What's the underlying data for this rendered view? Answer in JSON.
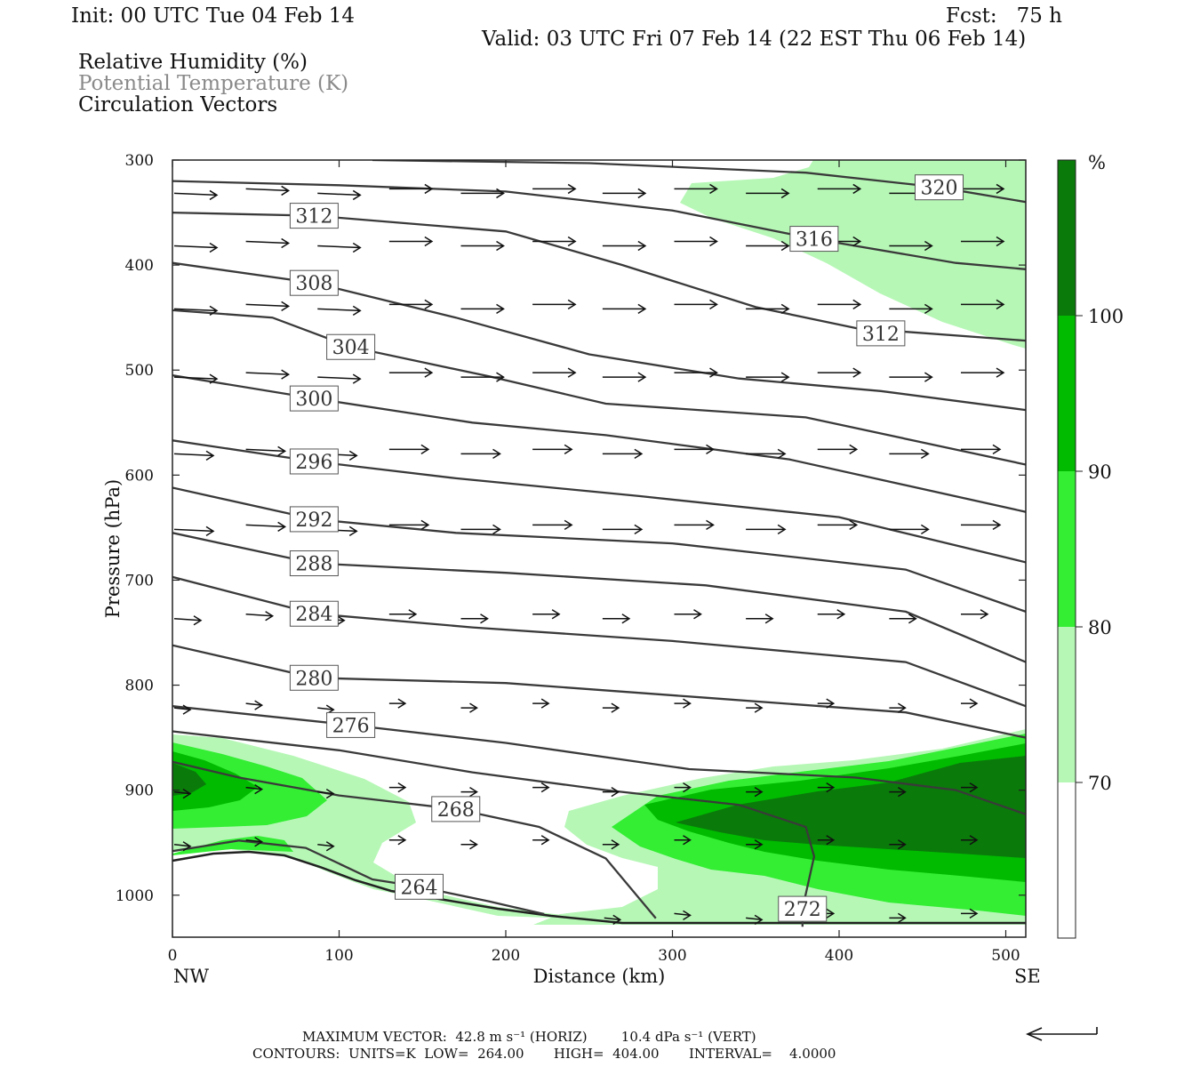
{
  "header": {
    "init": "Init: 00 UTC Tue 04 Feb 14",
    "fcst": "Fcst:   75 h",
    "valid": "Valid: 03 UTC Fri 07 Feb 14 (22 EST Thu 06 Feb 14)"
  },
  "legend": {
    "line1": "Relative Humidity (%)",
    "line2": "Potential Temperature (K)",
    "line3": "Circulation Vectors"
  },
  "footer": {
    "line1": "MAXIMUM VECTOR:  42.8 m s⁻¹ (HORIZ)        10.4 dPa s⁻¹ (VERT)",
    "line2": "CONTOURS:  UNITS=K  LOW=  264.00       HIGH=  404.00       INTERVAL=    4.0000"
  },
  "colorbar": {
    "unit": "%",
    "ticks": [
      "100",
      "90",
      "80",
      "70"
    ],
    "colors": [
      "#0a7a0a",
      "#00bb00",
      "#33ee33",
      "#b6f7b6",
      "#ffffff"
    ]
  },
  "chart_data": {
    "type": "contour",
    "xlabel": "Distance (km)",
    "ylabel": "Pressure (hPa)",
    "x_ticks": [
      "0",
      "100",
      "200",
      "300",
      "400",
      "500"
    ],
    "x_end_labels": {
      "left": "NW",
      "right": "SE"
    },
    "y_ticks": [
      "300",
      "400",
      "500",
      "600",
      "700",
      "800",
      "900",
      "1000"
    ],
    "xlim": [
      0,
      512
    ],
    "ylim": [
      1040,
      300
    ],
    "theta_contours": [
      {
        "level": 320,
        "label": "320",
        "label_at": [
          460,
          326
        ],
        "points": [
          [
            120,
            300
          ],
          [
            250,
            303
          ],
          [
            380,
            312
          ],
          [
            460,
            326
          ],
          [
            512,
            340
          ]
        ]
      },
      {
        "level": 316,
        "label": "316",
        "label_at": [
          385,
          375
        ],
        "points": [
          [
            0,
            320
          ],
          [
            100,
            324
          ],
          [
            200,
            330
          ],
          [
            300,
            348
          ],
          [
            385,
            375
          ],
          [
            470,
            398
          ],
          [
            512,
            404
          ]
        ]
      },
      {
        "level": 312,
        "label": "312",
        "label_at": [
          85,
          353
        ],
        "points": [
          [
            0,
            350
          ],
          [
            85,
            353
          ],
          [
            200,
            368
          ],
          [
            270,
            400
          ],
          [
            350,
            440
          ],
          [
            410,
            460
          ],
          [
            512,
            472
          ]
        ]
      },
      {
        "level": 312,
        "label": "312",
        "label_at": [
          425,
          465
        ],
        "points": []
      },
      {
        "level": 308,
        "label": "308",
        "label_at": [
          85,
          417
        ],
        "points": [
          [
            0,
            398
          ],
          [
            85,
            417
          ],
          [
            170,
            450
          ],
          [
            250,
            485
          ],
          [
            340,
            508
          ],
          [
            425,
            520
          ],
          [
            512,
            538
          ]
        ]
      },
      {
        "level": 304,
        "label": "304",
        "label_at": [
          107,
          478
        ],
        "points": [
          [
            0,
            443
          ],
          [
            60,
            450
          ],
          [
            107,
            478
          ],
          [
            190,
            506
          ],
          [
            260,
            532
          ],
          [
            380,
            545
          ],
          [
            512,
            590
          ]
        ]
      },
      {
        "level": 300,
        "label": "300",
        "label_at": [
          85,
          527
        ],
        "points": [
          [
            0,
            505
          ],
          [
            85,
            527
          ],
          [
            180,
            550
          ],
          [
            260,
            562
          ],
          [
            370,
            585
          ],
          [
            512,
            635
          ]
        ]
      },
      {
        "level": 296,
        "label": "296",
        "label_at": [
          85,
          587
        ],
        "points": [
          [
            0,
            567
          ],
          [
            85,
            587
          ],
          [
            170,
            603
          ],
          [
            280,
            620
          ],
          [
            400,
            640
          ],
          [
            512,
            683
          ]
        ]
      },
      {
        "level": 292,
        "label": "292",
        "label_at": [
          85,
          642
        ],
        "points": [
          [
            0,
            612
          ],
          [
            85,
            642
          ],
          [
            170,
            655
          ],
          [
            300,
            665
          ],
          [
            440,
            690
          ],
          [
            512,
            730
          ]
        ]
      },
      {
        "level": 288,
        "label": "288",
        "label_at": [
          85,
          684
        ],
        "points": [
          [
            0,
            655
          ],
          [
            85,
            684
          ],
          [
            200,
            693
          ],
          [
            320,
            705
          ],
          [
            440,
            730
          ],
          [
            512,
            778
          ]
        ]
      },
      {
        "level": 284,
        "label": "284",
        "label_at": [
          85,
          732
        ],
        "points": [
          [
            0,
            697
          ],
          [
            85,
            732
          ],
          [
            180,
            745
          ],
          [
            300,
            758
          ],
          [
            440,
            778
          ],
          [
            512,
            820
          ]
        ]
      },
      {
        "level": 280,
        "label": "280",
        "label_at": [
          85,
          793
        ],
        "points": [
          [
            0,
            762
          ],
          [
            85,
            793
          ],
          [
            200,
            798
          ],
          [
            320,
            812
          ],
          [
            440,
            826
          ],
          [
            500,
            846
          ],
          [
            512,
            850
          ]
        ]
      },
      {
        "level": 276,
        "label": "276",
        "label_at": [
          107,
          838
        ],
        "points": [
          [
            0,
            820
          ],
          [
            107,
            838
          ],
          [
            200,
            855
          ],
          [
            310,
            880
          ],
          [
            410,
            888
          ],
          [
            470,
            900
          ],
          [
            512,
            923
          ]
        ]
      },
      {
        "level": 272,
        "label": "272",
        "label_at": [
          378,
          1013
        ],
        "points": [
          [
            0,
            844
          ],
          [
            100,
            862
          ],
          [
            180,
            883
          ],
          [
            260,
            900
          ],
          [
            340,
            914
          ],
          [
            380,
            935
          ],
          [
            385,
            963
          ],
          [
            378,
            1013
          ],
          [
            378,
            1030
          ]
        ]
      },
      {
        "level": 268,
        "label": "268",
        "label_at": [
          170,
          918
        ],
        "points": [
          [
            0,
            873
          ],
          [
            40,
            888
          ],
          [
            100,
            905
          ],
          [
            170,
            918
          ],
          [
            220,
            935
          ],
          [
            260,
            965
          ],
          [
            290,
            1022
          ]
        ]
      },
      {
        "level": 264,
        "label": "264",
        "label_at": [
          148,
          992
        ],
        "points": [
          [
            0,
            958
          ],
          [
            40,
            948
          ],
          [
            80,
            955
          ],
          [
            120,
            985
          ],
          [
            148,
            992
          ],
          [
            190,
            1006
          ],
          [
            223,
            1018
          ]
        ]
      }
    ],
    "rh_levels": [
      70,
      80,
      90,
      100
    ],
    "vectors": [
      {
        "p": 330,
        "x": [
          0,
          43,
          86,
          129,
          172,
          215,
          257,
          300,
          343,
          386,
          429,
          472
        ]
      },
      {
        "p": 380,
        "x": [
          0,
          43,
          86,
          129,
          172,
          215,
          257,
          300,
          343,
          386,
          429,
          472
        ]
      },
      {
        "p": 440,
        "x": [
          0,
          43,
          86,
          129,
          172,
          215,
          257,
          300,
          343,
          386,
          429,
          472
        ]
      },
      {
        "p": 505,
        "x": [
          0,
          43,
          86,
          129,
          172,
          215,
          257,
          300,
          343,
          386,
          429,
          472
        ]
      },
      {
        "p": 578,
        "x": [
          0,
          43,
          86,
          129,
          172,
          215,
          257,
          300,
          343,
          386,
          429,
          472
        ]
      },
      {
        "p": 650,
        "x": [
          0,
          43,
          86,
          129,
          172,
          215,
          257,
          300,
          343,
          386,
          429,
          472
        ]
      },
      {
        "p": 735,
        "x": [
          0,
          43,
          86,
          129,
          172,
          215,
          257,
          300,
          343,
          386,
          429,
          472
        ]
      },
      {
        "p": 820,
        "x": [
          0,
          43,
          86,
          129,
          172,
          215,
          257,
          300,
          343,
          386,
          429,
          472
        ]
      },
      {
        "p": 900,
        "x": [
          0,
          43,
          86,
          129,
          172,
          215,
          257,
          300,
          343,
          386,
          429,
          472
        ]
      },
      {
        "p": 950,
        "x": [
          0,
          43,
          86,
          129,
          172,
          215,
          257,
          300,
          343,
          386,
          429,
          472
        ]
      },
      {
        "p": 1020,
        "x": [
          258,
          300,
          343,
          386,
          429,
          472
        ]
      }
    ]
  }
}
